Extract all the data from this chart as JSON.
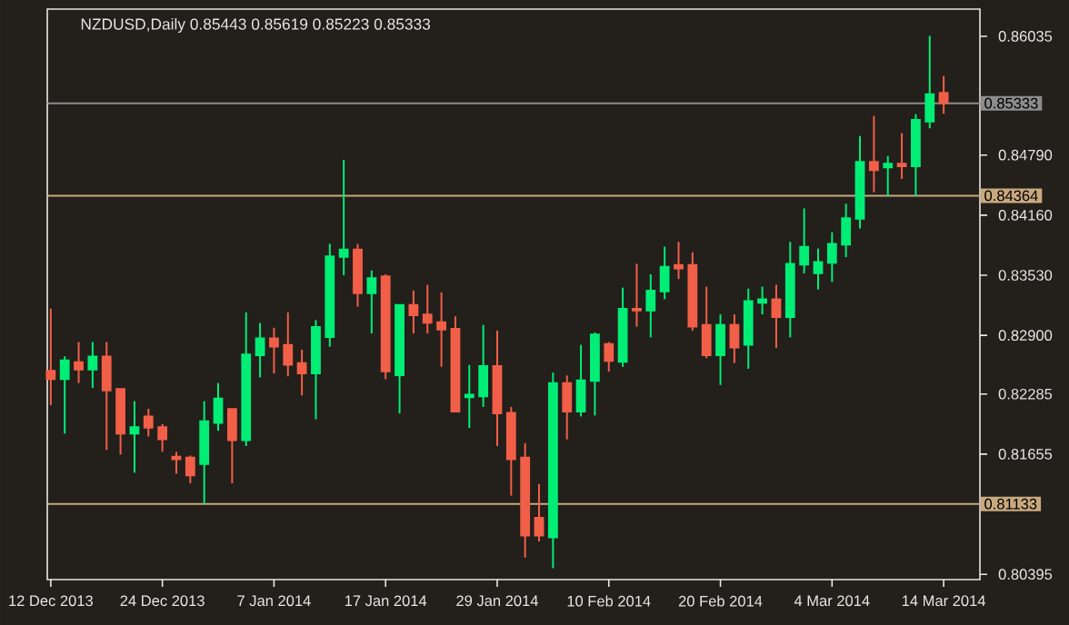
{
  "chart_data": {
    "type": "candlestick",
    "title": "NZDUSD,Daily 0.85443 0.85619 0.85223 0.85333",
    "categories": [
      "12 Dec 2013",
      null,
      null,
      null,
      null,
      null,
      null,
      null,
      "24 Dec 2013",
      null,
      null,
      null,
      null,
      null,
      null,
      null,
      "7 Jan 2014",
      null,
      null,
      null,
      null,
      null,
      null,
      null,
      "17 Jan 2014",
      null,
      null,
      null,
      null,
      null,
      null,
      null,
      "29 Jan 2014",
      null,
      null,
      null,
      null,
      null,
      null,
      null,
      "10 Feb 2014",
      null,
      null,
      null,
      null,
      null,
      null,
      null,
      "20 Feb 2014",
      null,
      null,
      null,
      null,
      null,
      null,
      null,
      "4 Mar 2014",
      null,
      null,
      null,
      null,
      null,
      null,
      null,
      "14 Mar 2014"
    ],
    "ohlc": [
      [
        0.8253,
        0.8318,
        0.8217,
        0.8244
      ],
      [
        0.8244,
        0.8268,
        0.8187,
        0.8264
      ],
      [
        0.8262,
        0.8283,
        0.824,
        0.8254
      ],
      [
        0.8254,
        0.8283,
        0.8235,
        0.8268
      ],
      [
        0.8268,
        0.8283,
        0.817,
        0.8232
      ],
      [
        0.8234,
        0.8234,
        0.8165,
        0.8187
      ],
      [
        0.8187,
        0.8221,
        0.8146,
        0.8194
      ],
      [
        0.8205,
        0.8213,
        0.8184,
        0.8193
      ],
      [
        0.8194,
        0.8197,
        0.8168,
        0.8181
      ],
      [
        0.8163,
        0.8168,
        0.8145,
        0.816
      ],
      [
        0.8162,
        0.8164,
        0.8135,
        0.8143
      ],
      [
        0.8155,
        0.8221,
        0.8113,
        0.82
      ],
      [
        0.8198,
        0.824,
        0.819,
        0.8224
      ],
      [
        0.8213,
        0.8213,
        0.8135,
        0.818
      ],
      [
        0.818,
        0.8314,
        0.8174,
        0.827
      ],
      [
        0.8269,
        0.8303,
        0.8246,
        0.8287
      ],
      [
        0.8287,
        0.8298,
        0.825,
        0.8278
      ],
      [
        0.828,
        0.8314,
        0.8247,
        0.8259
      ],
      [
        0.8261,
        0.8275,
        0.8227,
        0.825
      ],
      [
        0.825,
        0.8306,
        0.8202,
        0.8299
      ],
      [
        0.8288,
        0.8386,
        0.8278,
        0.8373
      ],
      [
        0.8372,
        0.8474,
        0.8353,
        0.838
      ],
      [
        0.838,
        0.8386,
        0.832,
        0.8334
      ],
      [
        0.8334,
        0.8358,
        0.8292,
        0.835
      ],
      [
        0.8352,
        0.8354,
        0.8244,
        0.8252
      ],
      [
        0.8248,
        0.8322,
        0.8208,
        0.8322
      ],
      [
        0.8322,
        0.8337,
        0.8292,
        0.8311
      ],
      [
        0.8312,
        0.8343,
        0.8292,
        0.8303
      ],
      [
        0.8304,
        0.8335,
        0.8257,
        0.8296
      ],
      [
        0.8297,
        0.831,
        0.821,
        0.821
      ],
      [
        0.8225,
        0.8259,
        0.8193,
        0.8228
      ],
      [
        0.8226,
        0.8301,
        0.8215,
        0.8258
      ],
      [
        0.8258,
        0.8295,
        0.8174,
        0.8208
      ],
      [
        0.8209,
        0.8215,
        0.8122,
        0.816
      ],
      [
        0.8162,
        0.8177,
        0.8057,
        0.808
      ],
      [
        0.8099,
        0.8134,
        0.8074,
        0.808
      ],
      [
        0.8078,
        0.8251,
        0.8046,
        0.824
      ],
      [
        0.824,
        0.8248,
        0.8181,
        0.821
      ],
      [
        0.821,
        0.828,
        0.8205,
        0.8243
      ],
      [
        0.8242,
        0.8293,
        0.8206,
        0.8291
      ],
      [
        0.8281,
        0.8283,
        0.8252,
        0.8263
      ],
      [
        0.8262,
        0.834,
        0.8257,
        0.8318
      ],
      [
        0.8318,
        0.8365,
        0.8299,
        0.8316
      ],
      [
        0.8316,
        0.8354,
        0.8288,
        0.8337
      ],
      [
        0.8336,
        0.8383,
        0.8328,
        0.8362
      ],
      [
        0.8364,
        0.8388,
        0.8349,
        0.836
      ],
      [
        0.8364,
        0.8377,
        0.8295,
        0.8299
      ],
      [
        0.8301,
        0.8341,
        0.8266,
        0.8269
      ],
      [
        0.8269,
        0.8312,
        0.8238,
        0.8301
      ],
      [
        0.8301,
        0.8312,
        0.8261,
        0.8277
      ],
      [
        0.828,
        0.8339,
        0.8255,
        0.8326
      ],
      [
        0.8324,
        0.8341,
        0.8312,
        0.8328
      ],
      [
        0.8328,
        0.8343,
        0.8277,
        0.8309
      ],
      [
        0.8309,
        0.8388,
        0.8288,
        0.8365
      ],
      [
        0.8364,
        0.8423,
        0.8355,
        0.8383
      ],
      [
        0.8355,
        0.8381,
        0.8338,
        0.8367
      ],
      [
        0.8366,
        0.8398,
        0.8346,
        0.8386
      ],
      [
        0.8385,
        0.8428,
        0.8372,
        0.8413
      ],
      [
        0.8412,
        0.8499,
        0.8402,
        0.8472
      ],
      [
        0.8472,
        0.852,
        0.844,
        0.8463
      ],
      [
        0.8466,
        0.8478,
        0.8436,
        0.847
      ],
      [
        0.847,
        0.8502,
        0.8454,
        0.8467
      ],
      [
        0.8467,
        0.8522,
        0.8436,
        0.8516
      ],
      [
        0.8514,
        0.8604,
        0.8507,
        0.8543
      ],
      [
        0.85443,
        0.85619,
        0.85223,
        0.85333
      ]
    ],
    "colors": [
      "#f25f48",
      "#00ee76",
      "#f25f48",
      "#00ee76",
      "#f25f48",
      "#f25f48",
      "#00ee76",
      "#f25f48",
      "#f25f48",
      "#f25f48",
      "#f25f48",
      "#00ee76",
      "#00ee76",
      "#f25f48",
      "#00ee76",
      "#00ee76",
      "#f25f48",
      "#f25f48",
      "#f25f48",
      "#00ee76",
      "#00ee76",
      "#00ee76",
      "#f25f48",
      "#00ee76",
      "#f25f48",
      "#00ee76",
      "#f25f48",
      "#f25f48",
      "#f25f48",
      "#f25f48",
      "#00ee76",
      "#00ee76",
      "#f25f48",
      "#f25f48",
      "#f25f48",
      "#f25f48",
      "#00ee76",
      "#f25f48",
      "#00ee76",
      "#00ee76",
      "#f25f48",
      "#00ee76",
      "#f25f48",
      "#00ee76",
      "#00ee76",
      "#f25f48",
      "#f25f48",
      "#f25f48",
      "#00ee76",
      "#f25f48",
      "#00ee76",
      "#00ee76",
      "#f25f48",
      "#00ee76",
      "#00ee76",
      "#00ee76",
      "#00ee76",
      "#00ee76",
      "#00ee76",
      "#f25f48",
      "#00ee76",
      "#f25f48",
      "#00ee76",
      "#00ee76",
      "#f25f48"
    ],
    "ylim": [
      0.8034,
      0.8632
    ],
    "yticks": [
      0.86035,
      {
        "value": 0.8479,
        "label": "0.84790"
      },
      {
        "value": 0.8416,
        "label": "0.84160"
      },
      {
        "value": 0.8353,
        "label": "0.83530"
      },
      {
        "value": 0.829,
        "label": "0.82900"
      },
      0.82285,
      0.81655,
      0.80395
    ],
    "ref_lines": [
      {
        "axis": "y",
        "value": 0.85333,
        "label": "0.85333",
        "color": "#8c8c8c"
      },
      {
        "axis": "y",
        "value": 0.84364,
        "label": "0.84364",
        "color": "#c8a97e"
      },
      {
        "axis": "y",
        "value": 0.81133,
        "label": "0.81133",
        "color": "#c8a97e"
      }
    ],
    "grid": false,
    "legend": false
  }
}
